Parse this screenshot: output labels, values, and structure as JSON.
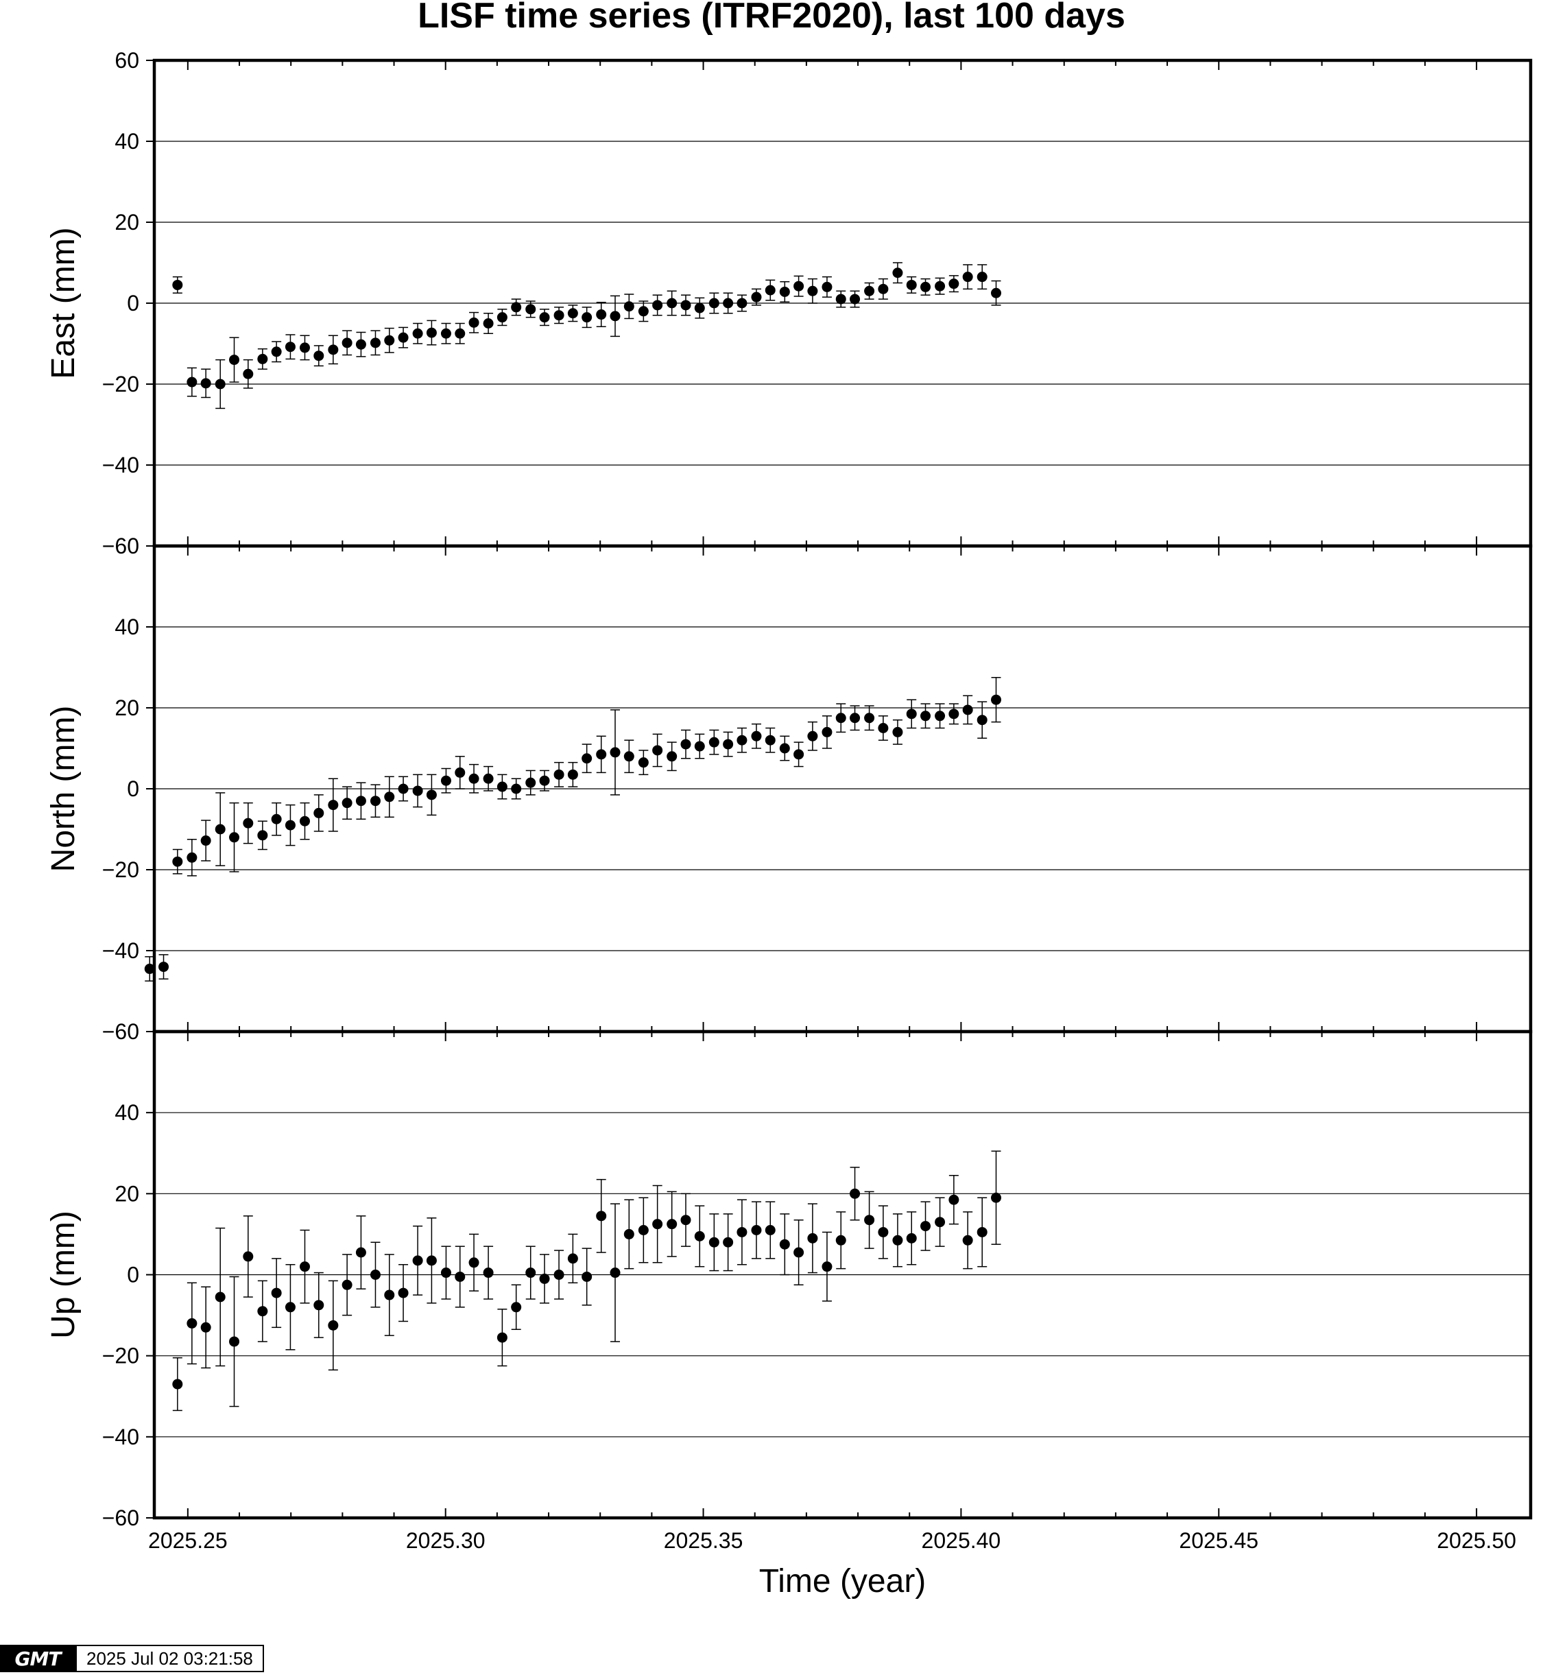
{
  "title": "LISF time series (ITRF2020), last 100 days",
  "footer": {
    "logo_text": "GMT",
    "timestamp": "2025 Jul 02 03:21:58"
  },
  "chart_data": [
    {
      "type": "scatter",
      "name": "east",
      "ylabel": "East (mm)",
      "xlabel": "",
      "xlim": [
        2025.2435,
        2025.5105
      ],
      "ylim": [
        -60,
        60
      ],
      "yticks": [
        -60,
        -40,
        -20,
        0,
        20,
        40,
        60
      ],
      "grid": true,
      "error_bars": true,
      "marker_color": "#000000",
      "x": [
        2025.248,
        2025.2508,
        2025.2535,
        2025.2563,
        2025.259,
        2025.2617,
        2025.2645,
        2025.2672,
        2025.2699,
        2025.2727,
        2025.2754,
        2025.2782,
        2025.2809,
        2025.2836,
        2025.2864,
        2025.2891,
        2025.2918,
        2025.2946,
        2025.2973,
        2025.3001,
        2025.3028,
        2025.3055,
        2025.3083,
        2025.311,
        2025.3137,
        2025.3165,
        2025.3192,
        2025.322,
        2025.3247,
        2025.3274,
        2025.3302,
        2025.3329,
        2025.3356,
        2025.3384,
        2025.3411,
        2025.3439,
        2025.3466,
        2025.3493,
        2025.3521,
        2025.3548,
        2025.3575,
        2025.3603,
        2025.363,
        2025.3658,
        2025.3685,
        2025.3712,
        2025.374,
        2025.3767,
        2025.3794,
        2025.3822,
        2025.3849,
        2025.3877,
        2025.3904,
        2025.3931,
        2025.3959,
        2025.3986,
        2025.4013,
        2025.4041,
        2025.4068
      ],
      "y": [
        4.5,
        -19.5,
        -19.8,
        -20.0,
        -14.0,
        -17.5,
        -13.8,
        -12.0,
        -10.8,
        -11.0,
        -13.0,
        -11.5,
        -9.8,
        -10.2,
        -9.8,
        -9.2,
        -8.5,
        -7.5,
        -7.3,
        -7.5,
        -7.5,
        -4.8,
        -5.0,
        -3.5,
        -1.0,
        -1.5,
        -3.5,
        -3.0,
        -2.5,
        -3.5,
        -2.8,
        -3.2,
        -0.8,
        -2.0,
        -0.5,
        0.0,
        -0.5,
        -1.2,
        0.0,
        0.0,
        0.0,
        1.5,
        3.2,
        2.8,
        4.2,
        3.0,
        4.0,
        1.0,
        1.0,
        3.0,
        3.5,
        7.5,
        4.5,
        4.0,
        4.2,
        4.8,
        6.5,
        6.5,
        2.5
      ],
      "err": [
        2.0,
        3.5,
        3.5,
        6.0,
        5.5,
        3.5,
        2.5,
        2.5,
        3.0,
        3.0,
        2.5,
        3.5,
        3.0,
        3.0,
        3.0,
        3.0,
        2.5,
        2.5,
        3.0,
        2.5,
        2.5,
        2.5,
        2.5,
        2.0,
        2.0,
        2.0,
        2.0,
        2.0,
        2.0,
        2.5,
        3.0,
        5.0,
        3.0,
        2.5,
        2.5,
        3.0,
        2.5,
        2.5,
        2.5,
        2.5,
        2.0,
        2.0,
        2.5,
        2.5,
        2.5,
        3.0,
        2.5,
        2.0,
        2.0,
        2.0,
        2.5,
        2.5,
        2.0,
        2.0,
        2.0,
        2.0,
        3.0,
        3.0,
        3.0
      ]
    },
    {
      "type": "scatter",
      "name": "north",
      "ylabel": "North (mm)",
      "xlabel": "",
      "xlim": [
        2025.2435,
        2025.5105
      ],
      "ylim": [
        -60,
        60
      ],
      "yticks": [
        -60,
        -40,
        -20,
        0,
        20,
        40
      ],
      "grid": true,
      "error_bars": true,
      "marker_color": "#000000",
      "x": [
        2025.2426,
        2025.2453,
        2025.248,
        2025.2508,
        2025.2535,
        2025.2563,
        2025.259,
        2025.2617,
        2025.2645,
        2025.2672,
        2025.2699,
        2025.2727,
        2025.2754,
        2025.2782,
        2025.2809,
        2025.2836,
        2025.2864,
        2025.2891,
        2025.2918,
        2025.2946,
        2025.2973,
        2025.3001,
        2025.3028,
        2025.3055,
        2025.3083,
        2025.311,
        2025.3137,
        2025.3165,
        2025.3192,
        2025.322,
        2025.3247,
        2025.3274,
        2025.3302,
        2025.3329,
        2025.3356,
        2025.3384,
        2025.3411,
        2025.3439,
        2025.3466,
        2025.3493,
        2025.3521,
        2025.3548,
        2025.3575,
        2025.3603,
        2025.363,
        2025.3658,
        2025.3685,
        2025.3712,
        2025.374,
        2025.3767,
        2025.3794,
        2025.3822,
        2025.3849,
        2025.3877,
        2025.3904,
        2025.3931,
        2025.3959,
        2025.3986,
        2025.4013,
        2025.4041,
        2025.4068
      ],
      "y": [
        -44.5,
        -44.0,
        -18.0,
        -17.0,
        -12.8,
        -10.0,
        -12.0,
        -8.5,
        -11.5,
        -7.5,
        -9.0,
        -8.0,
        -6.0,
        -4.0,
        -3.5,
        -3.0,
        -3.0,
        -2.0,
        0.0,
        -0.5,
        -1.5,
        2.0,
        4.0,
        2.5,
        2.5,
        0.5,
        0.0,
        1.5,
        2.0,
        3.5,
        3.5,
        7.5,
        8.5,
        9.0,
        8.0,
        6.5,
        9.5,
        8.0,
        11.0,
        10.5,
        11.5,
        11.0,
        12.0,
        13.0,
        12.0,
        10.0,
        8.5,
        13.0,
        14.0,
        17.5,
        17.5,
        17.5,
        15.0,
        14.0,
        18.5,
        18.0,
        18.0,
        18.5,
        19.5,
        17.0,
        22.0
      ],
      "err": [
        3.0,
        3.0,
        3.0,
        4.5,
        5.0,
        9.0,
        8.5,
        5.0,
        3.5,
        4.0,
        5.0,
        4.5,
        4.5,
        6.5,
        4.0,
        4.5,
        4.0,
        5.0,
        3.0,
        4.0,
        5.0,
        3.0,
        4.0,
        3.5,
        3.0,
        3.0,
        2.5,
        3.0,
        2.5,
        3.0,
        3.0,
        3.5,
        4.5,
        10.5,
        4.0,
        3.0,
        4.0,
        3.5,
        3.5,
        3.0,
        3.0,
        3.0,
        3.0,
        3.0,
        3.0,
        3.0,
        3.0,
        3.5,
        4.0,
        3.5,
        3.0,
        3.0,
        3.0,
        3.0,
        3.5,
        3.0,
        3.0,
        2.5,
        3.5,
        4.5,
        5.5
      ]
    },
    {
      "type": "scatter",
      "name": "up",
      "ylabel": "Up (mm)",
      "xlabel": "Time (year)",
      "xlim": [
        2025.2435,
        2025.5105
      ],
      "ylim": [
        -60,
        60
      ],
      "yticks": [
        -60,
        -40,
        -20,
        0,
        20,
        40
      ],
      "xticks": [
        2025.25,
        2025.3,
        2025.35,
        2025.4,
        2025.45,
        2025.5
      ],
      "xtick_labels": [
        "2025.25",
        "2025.30",
        "2025.35",
        "2025.40",
        "2025.45",
        "2025.50"
      ],
      "grid": true,
      "error_bars": true,
      "marker_color": "#000000",
      "x": [
        2025.248,
        2025.2508,
        2025.2535,
        2025.2563,
        2025.259,
        2025.2617,
        2025.2645,
        2025.2672,
        2025.2699,
        2025.2727,
        2025.2754,
        2025.2782,
        2025.2809,
        2025.2836,
        2025.2864,
        2025.2891,
        2025.2918,
        2025.2946,
        2025.2973,
        2025.3001,
        2025.3028,
        2025.3055,
        2025.3083,
        2025.311,
        2025.3137,
        2025.3165,
        2025.3192,
        2025.322,
        2025.3247,
        2025.3274,
        2025.3302,
        2025.3329,
        2025.3356,
        2025.3384,
        2025.3411,
        2025.3439,
        2025.3466,
        2025.3493,
        2025.3521,
        2025.3548,
        2025.3575,
        2025.3603,
        2025.363,
        2025.3658,
        2025.3685,
        2025.3712,
        2025.374,
        2025.3767,
        2025.3794,
        2025.3822,
        2025.3849,
        2025.3877,
        2025.3904,
        2025.3931,
        2025.3959,
        2025.3986,
        2025.4013,
        2025.4041,
        2025.4068
      ],
      "y": [
        -27.0,
        -12.0,
        -13.0,
        -5.5,
        -16.5,
        4.5,
        -9.0,
        -4.5,
        -8.0,
        2.0,
        -7.5,
        -12.5,
        -2.5,
        5.5,
        0.0,
        -5.0,
        -4.5,
        3.5,
        3.5,
        0.5,
        -0.5,
        3.0,
        0.5,
        -15.5,
        -8.0,
        0.5,
        -1.0,
        0.0,
        4.0,
        -0.5,
        14.5,
        0.5,
        10.0,
        11.0,
        12.5,
        12.5,
        13.5,
        9.5,
        8.0,
        8.0,
        10.5,
        11.0,
        11.0,
        7.5,
        5.5,
        9.0,
        2.0,
        8.5,
        20.0,
        13.5,
        10.5,
        8.5,
        9.0,
        12.0,
        13.0,
        18.5,
        8.5,
        10.5,
        19.0
      ],
      "err": [
        6.5,
        10.0,
        10.0,
        17.0,
        16.0,
        10.0,
        7.5,
        8.5,
        10.5,
        9.0,
        8.0,
        11.0,
        7.5,
        9.0,
        8.0,
        10.0,
        7.0,
        8.5,
        10.5,
        6.5,
        7.5,
        7.0,
        6.5,
        7.0,
        5.5,
        6.5,
        6.0,
        6.0,
        6.0,
        7.0,
        9.0,
        17.0,
        8.5,
        8.0,
        9.5,
        8.0,
        6.5,
        7.5,
        7.0,
        7.0,
        8.0,
        7.0,
        7.0,
        7.5,
        8.0,
        8.5,
        8.5,
        7.0,
        6.5,
        7.0,
        6.5,
        6.5,
        6.5,
        6.0,
        6.0,
        6.0,
        7.0,
        8.5,
        11.5
      ]
    }
  ]
}
